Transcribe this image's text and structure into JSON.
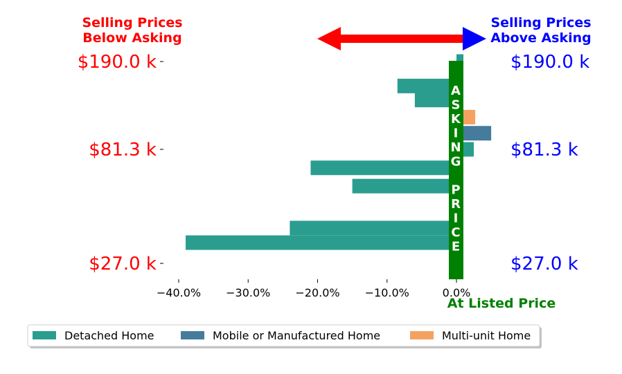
{
  "chart_data": {
    "type": "bar",
    "orientation": "horizontal",
    "header_left": [
      "Selling Prices",
      "Below Asking"
    ],
    "header_right": [
      "Selling Prices",
      "Above Asking"
    ],
    "center_label": "At Listed Price",
    "asking_price_letters": [
      "A",
      "S",
      "K",
      "I",
      "N",
      "G",
      "",
      "P",
      "R",
      "I",
      "C",
      "E"
    ],
    "xlim": [
      -0.4,
      0.0
    ],
    "x_ticks": [
      -40.0,
      -30.0,
      -20.0,
      -10.0,
      0.0
    ],
    "x_tick_labels": [
      "−40.0%",
      "−30.0%",
      "−20.0%",
      "−10.0%",
      "0.0%"
    ],
    "y_tick_labels": [
      "$190.0 k",
      "$81.3 k",
      "$27.0 k"
    ],
    "y_tick_values": [
      190.0,
      81.3,
      27.0
    ],
    "y_scale": "log",
    "ylim": [
      23.0,
      190.0
    ],
    "legend_placement": "bottom-left",
    "series": [
      {
        "name": "Detached Home",
        "color": "#2a9d8f"
      },
      {
        "name": "Mobile or Manufactured Home",
        "color": "#457b9d"
      },
      {
        "name": "Multi-unit Home",
        "color": "#f4a261"
      }
    ],
    "bars": [
      {
        "series": 0,
        "price_k": 190.0,
        "pct": 1.0
      },
      {
        "series": 0,
        "price_k": 150.0,
        "pct": -8.5
      },
      {
        "series": 0,
        "price_k": 131.0,
        "pct": -6.0
      },
      {
        "series": 2,
        "price_k": 111.0,
        "pct": 2.7
      },
      {
        "series": 1,
        "price_k": 95.0,
        "pct": 5.0
      },
      {
        "series": 0,
        "price_k": 81.3,
        "pct": 2.5
      },
      {
        "series": 0,
        "price_k": 68.0,
        "pct": -21.0
      },
      {
        "series": 0,
        "price_k": 57.0,
        "pct": -15.0
      },
      {
        "series": 0,
        "price_k": 47.0,
        "pct": 1.0
      },
      {
        "series": 0,
        "price_k": 38.0,
        "pct": -24.0
      },
      {
        "series": 0,
        "price_k": 33.0,
        "pct": -39.0
      }
    ],
    "colors": {
      "below": "#ff0000",
      "above": "#0000ff",
      "asking": "#008000"
    }
  }
}
